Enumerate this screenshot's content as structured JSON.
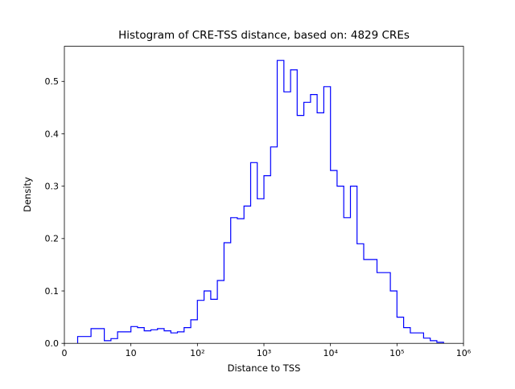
{
  "chart_data": {
    "type": "histogram",
    "title": "Histogram of CRE-TSS distance, based on: 4829 CREs",
    "xlabel": "Distance to TSS",
    "ylabel": "Density",
    "cre_count": 4829,
    "line_color": "#0000ff",
    "background_color": "#ffffff",
    "axis_color": "#000000",
    "x_scale": "log10",
    "x_scale_log10_range": [
      0,
      6
    ],
    "ylim": [
      0,
      0.567
    ],
    "grid": false,
    "legend": "none",
    "x_ticks": [
      {
        "log10": 0,
        "label": "0"
      },
      {
        "log10": 1,
        "label": "10"
      },
      {
        "log10": 2,
        "label": "10²"
      },
      {
        "log10": 3,
        "label": "10³"
      },
      {
        "log10": 4,
        "label": "10⁴"
      },
      {
        "log10": 5,
        "label": "10⁵"
      },
      {
        "log10": 6,
        "label": "10⁶"
      }
    ],
    "y_ticks": [
      {
        "value": 0.0,
        "label": "0.0"
      },
      {
        "value": 0.1,
        "label": "0.1"
      },
      {
        "value": 0.2,
        "label": "0.2"
      },
      {
        "value": 0.3,
        "label": "0.3"
      },
      {
        "value": 0.4,
        "label": "0.4"
      },
      {
        "value": 0.5,
        "label": "0.5"
      }
    ],
    "bins_log10_start": 0.2,
    "bins_log10_width": 0.1,
    "densities": [
      0.013,
      0.013,
      0.028,
      0.028,
      0.005,
      0.009,
      0.022,
      0.022,
      0.032,
      0.03,
      0.024,
      0.026,
      0.028,
      0.024,
      0.02,
      0.022,
      0.03,
      0.045,
      0.082,
      0.1,
      0.084,
      0.12,
      0.192,
      0.24,
      0.238,
      0.262,
      0.345,
      0.276,
      0.32,
      0.375,
      0.54,
      0.48,
      0.522,
      0.435,
      0.46,
      0.475,
      0.44,
      0.49,
      0.33,
      0.3,
      0.24,
      0.3,
      0.19,
      0.16,
      0.16,
      0.135,
      0.135,
      0.1,
      0.05,
      0.03,
      0.02,
      0.02,
      0.01,
      0.005,
      0.002
    ]
  }
}
